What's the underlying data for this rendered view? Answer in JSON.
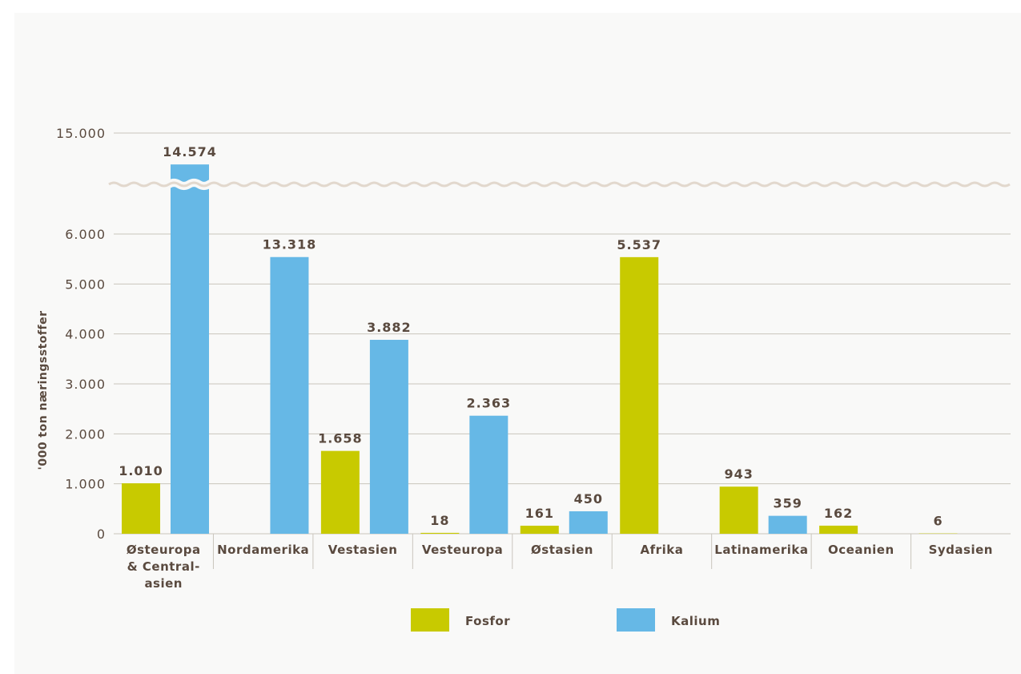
{
  "chart_data": {
    "type": "bar",
    "ylabel": "'000 ton næringsstoffer",
    "ylim_lower": [
      0,
      6500
    ],
    "ylim_upper": [
      14500,
      15000
    ],
    "axis_break": true,
    "yticks": [
      {
        "value": 0,
        "label": "0"
      },
      {
        "value": 1000,
        "label": "1.000"
      },
      {
        "value": 2000,
        "label": "2.000"
      },
      {
        "value": 3000,
        "label": "3.000"
      },
      {
        "value": 4000,
        "label": "4.000"
      },
      {
        "value": 5000,
        "label": "5.000"
      },
      {
        "value": 6000,
        "label": "6.000"
      },
      {
        "value": 15000,
        "label": "15.000"
      }
    ],
    "categories": [
      [
        "Østeuropa",
        "& Central-",
        "asien"
      ],
      [
        "Nordamerika"
      ],
      [
        "Vestasien"
      ],
      [
        "Vesteuropa"
      ],
      [
        "Østasien"
      ],
      [
        "Afrika"
      ],
      [
        "Latinamerika"
      ],
      [
        "Oceanien"
      ],
      [
        "Sydasien"
      ]
    ],
    "series": [
      {
        "name": "Fosfor",
        "color": "#c8ca00",
        "values": [
          1010,
          null,
          1658,
          18,
          161,
          5537,
          943,
          162,
          6
        ],
        "labels": [
          "1.010",
          "",
          "1.658",
          "18",
          "161",
          "5.537",
          "943",
          "162",
          "6"
        ]
      },
      {
        "name": "Kalium",
        "color": "#66b8e6",
        "values": [
          14574,
          13318,
          3882,
          2363,
          450,
          null,
          359,
          null,
          null
        ],
        "labels": [
          "14.574",
          "13.318",
          "3.882",
          "2.363",
          "450",
          "",
          "359",
          "",
          ""
        ]
      }
    ],
    "legend_position": "bottom",
    "grid": true
  }
}
